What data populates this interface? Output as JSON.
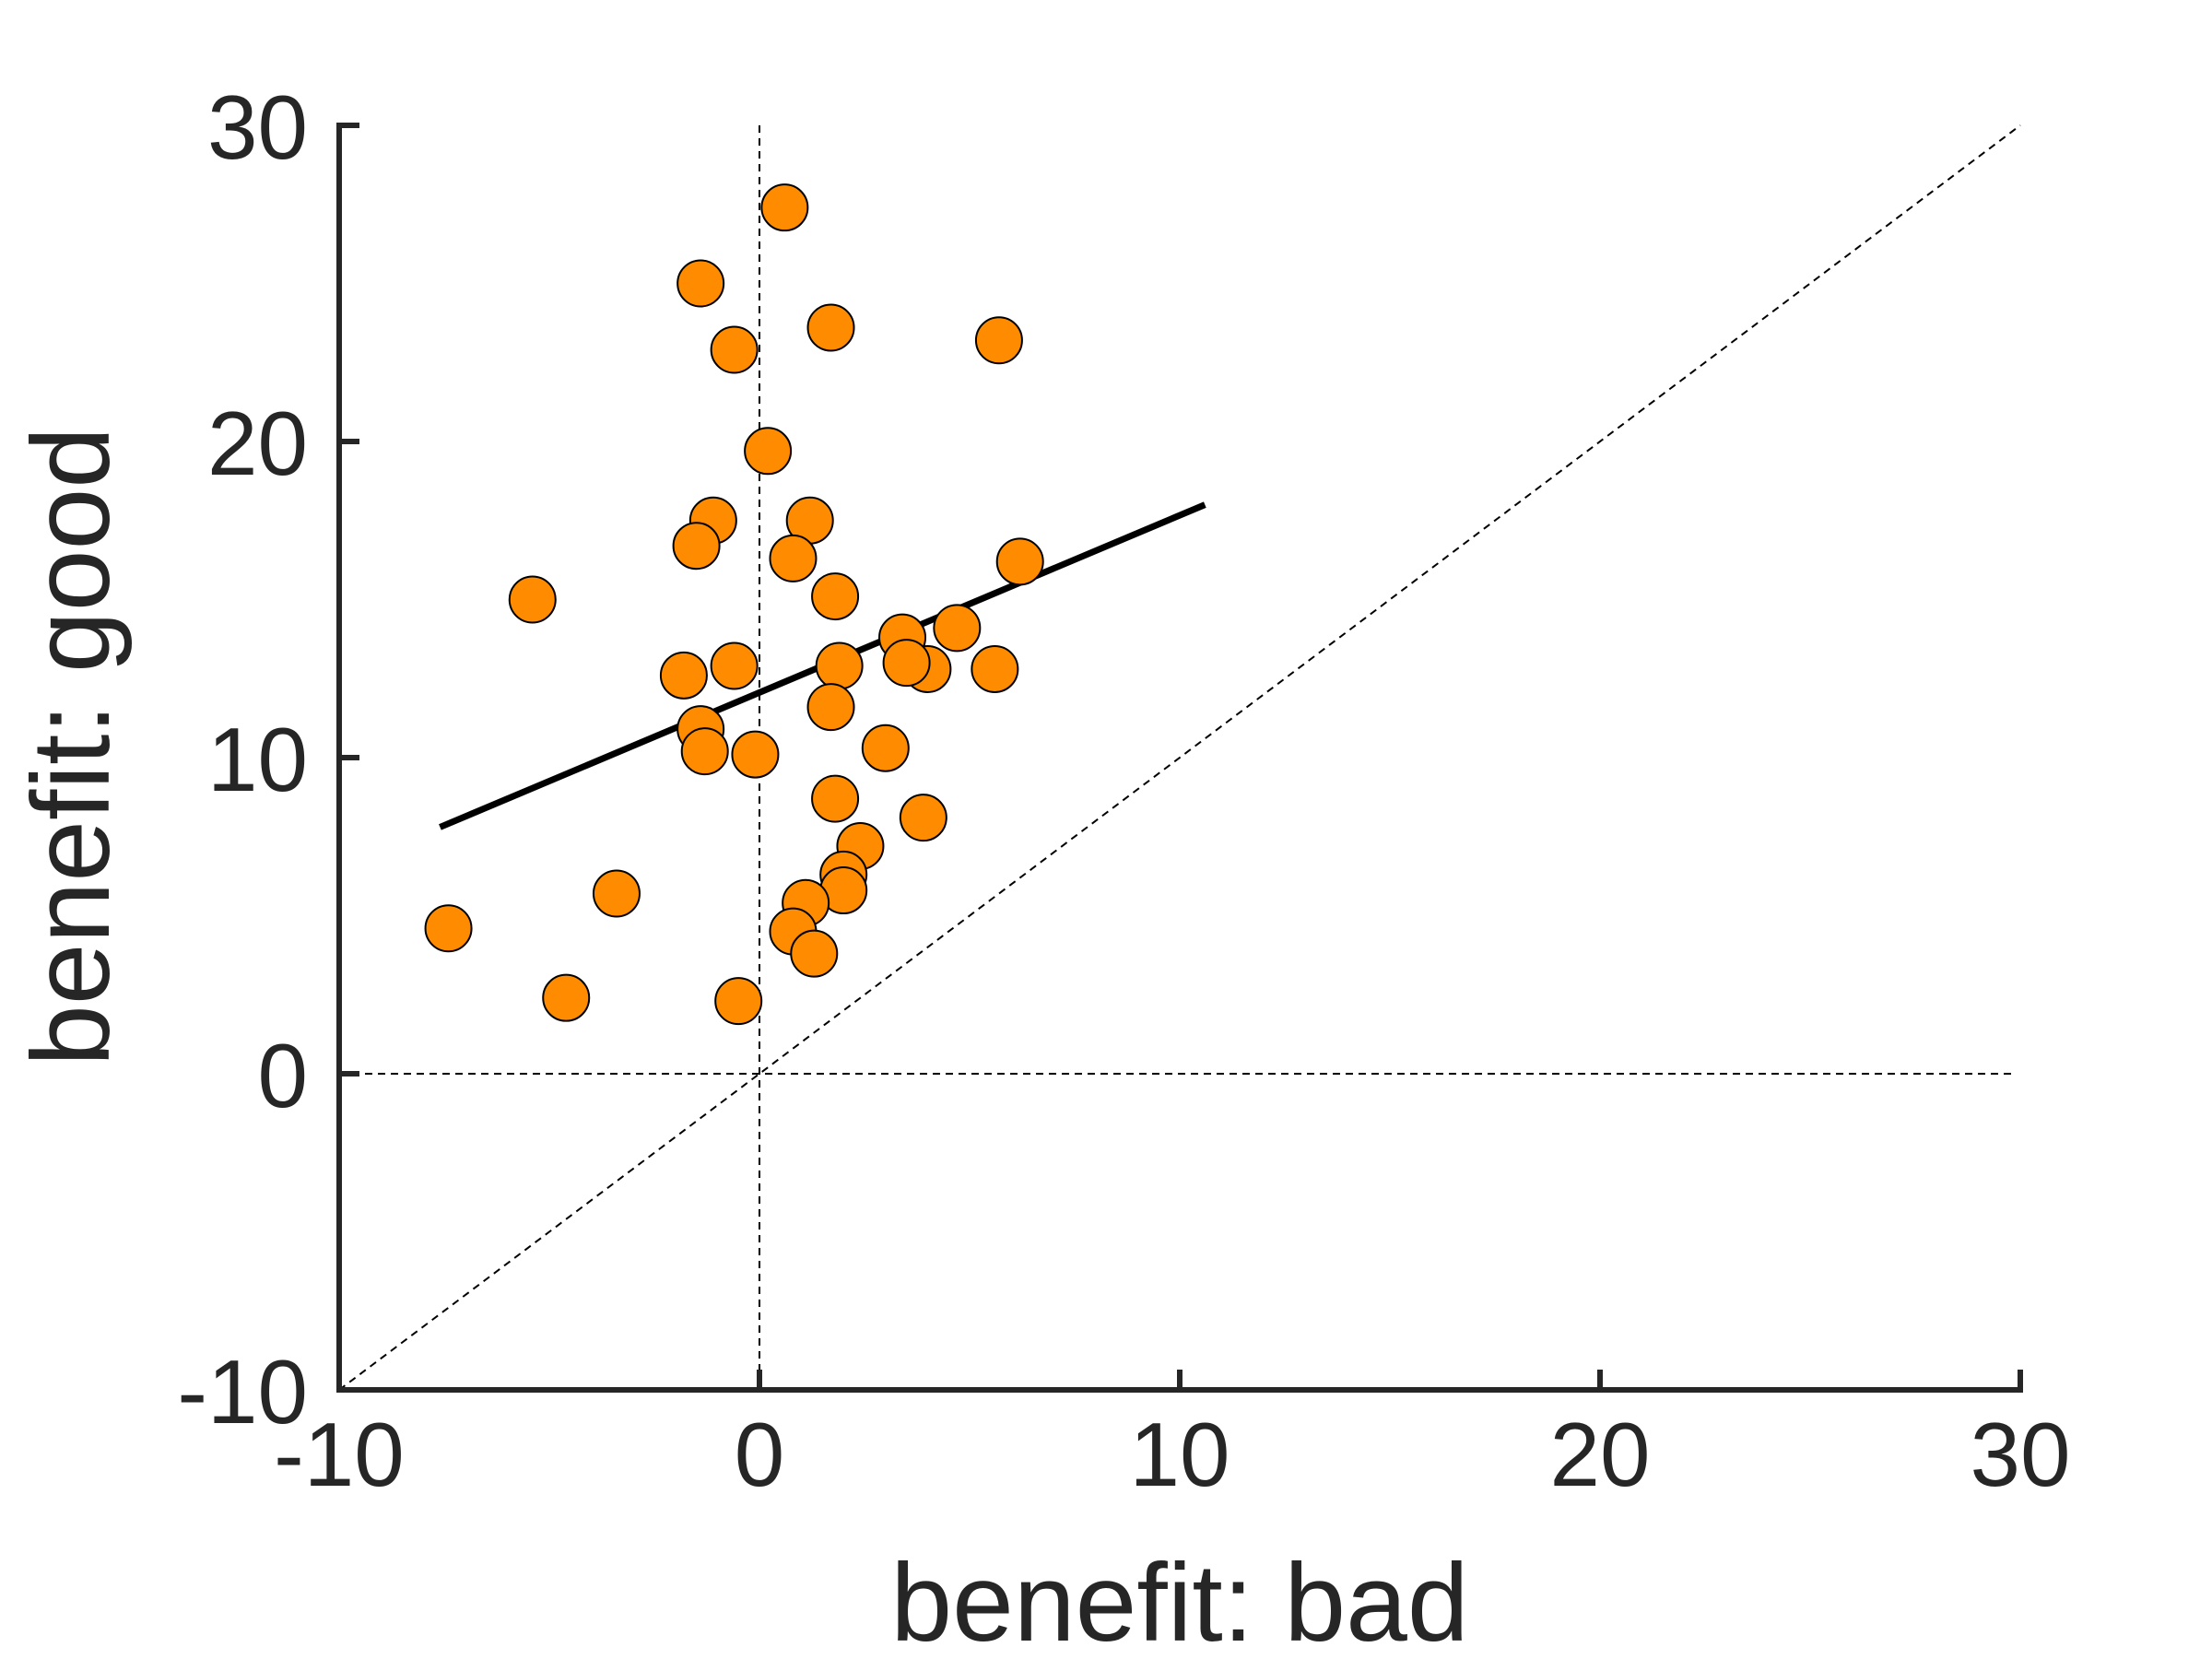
{
  "chart_data": {
    "type": "scatter",
    "title": "",
    "xlabel": "benefit: bad",
    "ylabel": "benefit: good",
    "xlim": [
      -10,
      30
    ],
    "ylim": [
      -10,
      30
    ],
    "xticks": [
      "-10",
      "0",
      "10",
      "20",
      "30"
    ],
    "yticks": [
      "-10",
      "0",
      "10",
      "20",
      "30"
    ],
    "grid": false,
    "marker_color": "#FF8C00",
    "marker_edge_color": "#000000",
    "axis_color": "#262626",
    "reference_lines": {
      "horizontal_zero": true,
      "vertical_zero": true,
      "identity_diagonal": true
    },
    "regression_line": {
      "x": [
        -7.6,
        10.6
      ],
      "y": [
        7.8,
        18.0
      ]
    },
    "points": [
      {
        "x": 0.6,
        "y": 27.4
      },
      {
        "x": -1.4,
        "y": 25.0
      },
      {
        "x": 1.7,
        "y": 23.6
      },
      {
        "x": -0.6,
        "y": 22.9
      },
      {
        "x": 5.7,
        "y": 23.2
      },
      {
        "x": 0.2,
        "y": 19.7
      },
      {
        "x": -1.1,
        "y": 17.5
      },
      {
        "x": 1.2,
        "y": 17.5
      },
      {
        "x": -1.5,
        "y": 16.7
      },
      {
        "x": 0.8,
        "y": 16.3
      },
      {
        "x": 6.2,
        "y": 16.2
      },
      {
        "x": -5.4,
        "y": 15.0
      },
      {
        "x": 1.8,
        "y": 15.1
      },
      {
        "x": 4.7,
        "y": 14.1
      },
      {
        "x": 3.4,
        "y": 13.8
      },
      {
        "x": -0.6,
        "y": 12.9
      },
      {
        "x": -1.8,
        "y": 12.6
      },
      {
        "x": 1.9,
        "y": 12.9
      },
      {
        "x": 4.0,
        "y": 12.8
      },
      {
        "x": 3.5,
        "y": 13.0
      },
      {
        "x": 5.6,
        "y": 12.8
      },
      {
        "x": 1.7,
        "y": 11.6
      },
      {
        "x": -1.4,
        "y": 10.9
      },
      {
        "x": -1.3,
        "y": 10.2
      },
      {
        "x": -0.1,
        "y": 10.1
      },
      {
        "x": 3.0,
        "y": 10.3
      },
      {
        "x": 1.8,
        "y": 8.7
      },
      {
        "x": 3.9,
        "y": 8.1
      },
      {
        "x": 2.4,
        "y": 7.2
      },
      {
        "x": 2.0,
        "y": 6.3
      },
      {
        "x": 2.0,
        "y": 5.8
      },
      {
        "x": -3.4,
        "y": 5.7
      },
      {
        "x": 1.1,
        "y": 5.4
      },
      {
        "x": -7.4,
        "y": 4.6
      },
      {
        "x": 0.8,
        "y": 4.5
      },
      {
        "x": 1.3,
        "y": 3.8
      },
      {
        "x": -4.6,
        "y": 2.4
      },
      {
        "x": -0.5,
        "y": 2.3
      }
    ]
  }
}
